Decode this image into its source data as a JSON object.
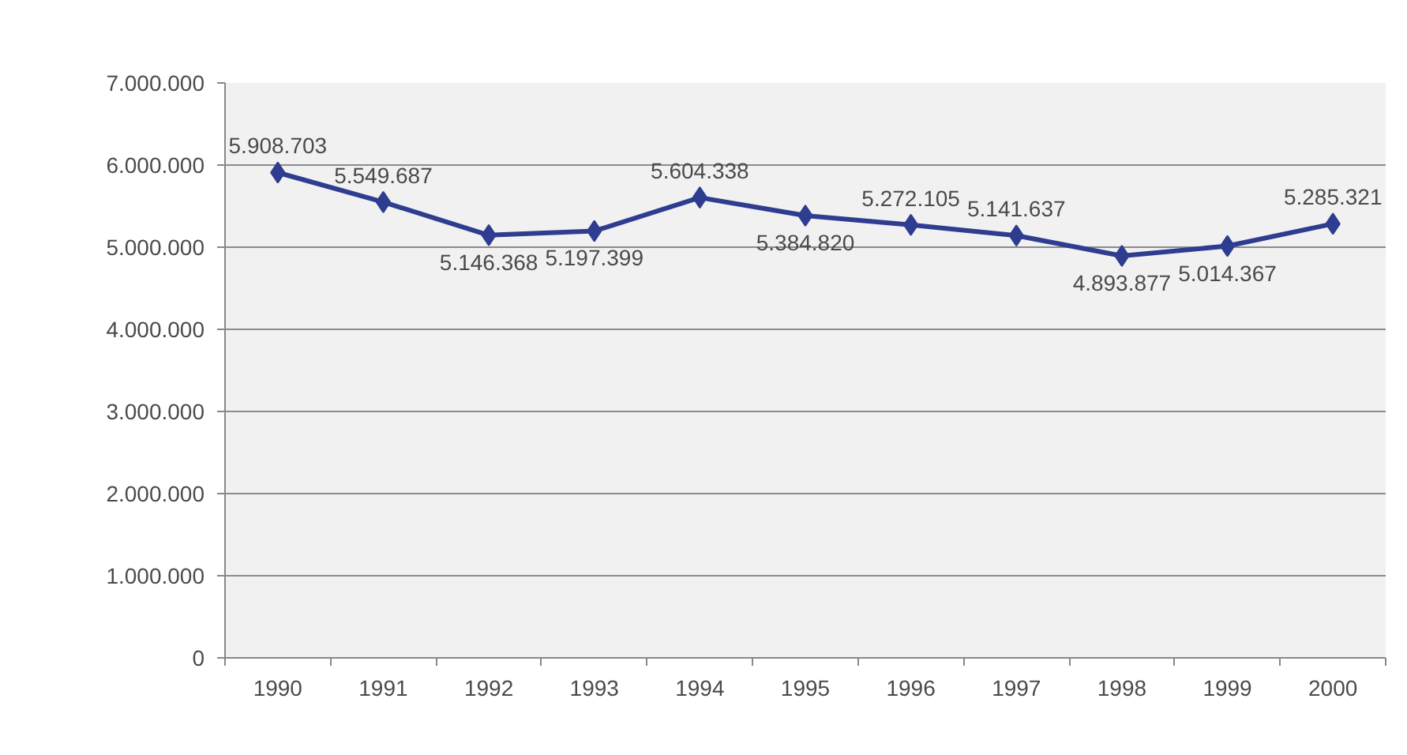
{
  "chart_data": {
    "type": "line",
    "categories": [
      "1990",
      "1991",
      "1992",
      "1993",
      "1994",
      "1995",
      "1996",
      "1997",
      "1998",
      "1999",
      "2000"
    ],
    "series": [
      {
        "color": "#2e3d8f",
        "values": [
          5908703,
          5549687,
          5146368,
          5197399,
          5604338,
          5384820,
          5272105,
          5141637,
          4893877,
          5014367,
          5285321
        ],
        "value_labels": [
          "5.908.703",
          "5.549.687",
          "5.146.368",
          "5.197.399",
          "5.604.338",
          "5.384.820",
          "5.272.105",
          "5.141.637",
          "4.893.877",
          "5.014.367",
          "5.285.321"
        ]
      }
    ],
    "ylim": [
      0,
      7000000
    ],
    "yticks": [
      0,
      {
        "value": 1000000,
        "label": "1.000.000"
      },
      {
        "value": 2000000,
        "label": "2.000.000"
      },
      {
        "value": 3000000,
        "label": "3.000.000"
      },
      {
        "value": 4000000,
        "label": "4.000.000"
      },
      {
        "value": 5000000,
        "label": "5.000.000"
      },
      {
        "value": 6000000,
        "label": "6.000.000"
      },
      {
        "value": 7000000,
        "label": "7.000.000"
      }
    ],
    "grid": "y",
    "marker": "diamond",
    "line_style": "solid"
  }
}
